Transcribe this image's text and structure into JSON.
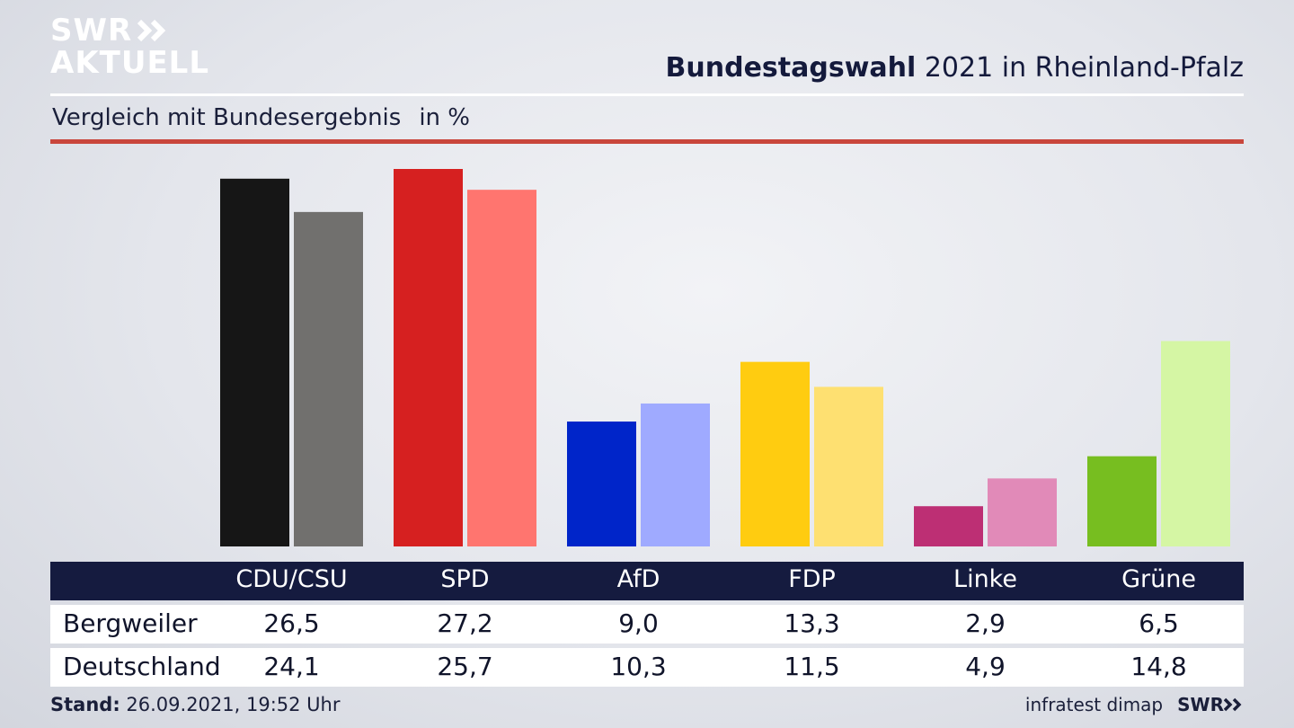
{
  "brand": {
    "logo_line1": "SWR",
    "logo_line2": "AKTUELL",
    "footer_logo": "SWR"
  },
  "header": {
    "title_bold": "Bundestagswahl",
    "title_rest": " 2021 in Rheinland-Pfalz",
    "subtitle": "Vergleich mit Bundesergebnis",
    "unit": "in %"
  },
  "footer": {
    "stand_label": "Stand:",
    "stand_value": " 26.09.2021, 19:52 Uhr",
    "source": "infratest dimap"
  },
  "table": {
    "row_labels": [
      "Bergweiler",
      "Deutschland"
    ]
  },
  "chart_data": {
    "type": "bar",
    "categories": [
      "CDU/CSU",
      "SPD",
      "AfD",
      "FDP",
      "Linke",
      "Grüne"
    ],
    "series": [
      {
        "name": "Bergweiler",
        "values": [
          26.5,
          27.2,
          9.0,
          13.3,
          2.9,
          6.5
        ],
        "labels": [
          "26,5",
          "27,2",
          "9,0",
          "13,3",
          "2,9",
          "6,5"
        ],
        "colors": [
          "#161616",
          "#d62020",
          "#0025c9",
          "#ffcc10",
          "#bd2f74",
          "#77be20"
        ]
      },
      {
        "name": "Deutschland",
        "values": [
          24.1,
          25.7,
          10.3,
          11.5,
          4.9,
          14.8
        ],
        "labels": [
          "24,1",
          "25,7",
          "10,3",
          "11,5",
          "4,9",
          "14,8"
        ],
        "colors": [
          "#71706e",
          "#ff756f",
          "#9faaff",
          "#fee071",
          "#e18ab8",
          "#d5f6a4"
        ]
      }
    ],
    "ylim": [
      0,
      27.2
    ]
  }
}
